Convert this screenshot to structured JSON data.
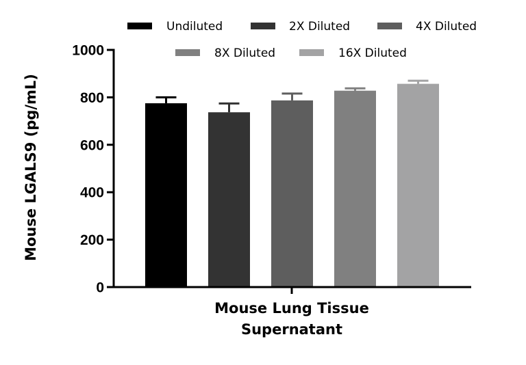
{
  "chart_data": {
    "type": "bar",
    "title": "",
    "xlabel_lines": [
      "Mouse Lung Tissue",
      "Supernatant"
    ],
    "ylabel": "Mouse LGALS9 (pg/mL)",
    "ylim": [
      0,
      1000
    ],
    "yticks": [
      0,
      200,
      400,
      600,
      800,
      1000
    ],
    "legend_position": "top",
    "series": [
      {
        "name": "Undiluted",
        "value": 775,
        "error": 25,
        "color": "#000000"
      },
      {
        "name": "2X Diluted",
        "value": 737,
        "error": 37,
        "color": "#333333"
      },
      {
        "name": "4X Diluted",
        "value": 787,
        "error": 29,
        "color": "#5e5e5e"
      },
      {
        "name": "8X Diluted",
        "value": 828,
        "error": 10,
        "color": "#808080"
      },
      {
        "name": "16X Diluted",
        "value": 857,
        "error": 13,
        "color": "#a3a3a4"
      }
    ]
  }
}
